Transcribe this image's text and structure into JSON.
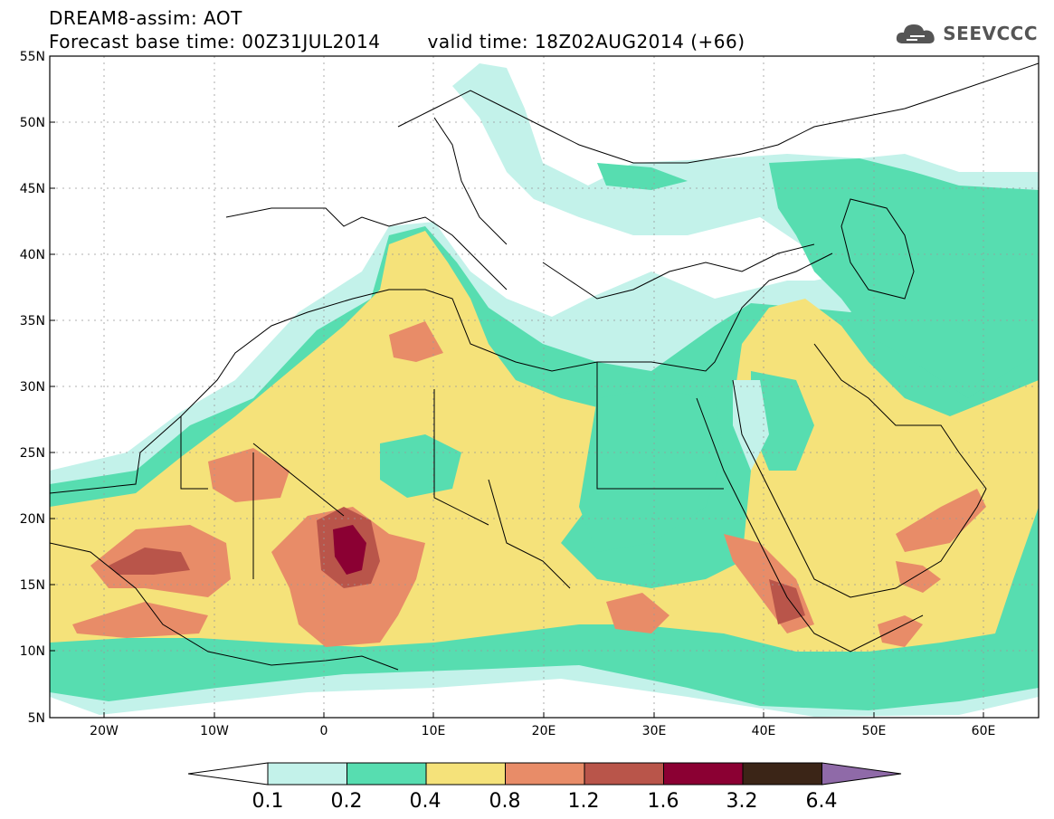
{
  "header": {
    "title_line1": "DREAM8-assim: AOT",
    "forecast_base": "Forecast base time: 00Z31JUL2014",
    "valid_time": "valid time: 18Z02AUG2014 (+66)"
  },
  "logo": {
    "text": "SEEVCCC",
    "icon": "cloud-icon"
  },
  "map": {
    "type": "contour-fill map",
    "lon_range": [
      -25,
      65
    ],
    "lat_range": [
      5,
      55
    ],
    "lat_ticks": [
      "55N",
      "50N",
      "45N",
      "40N",
      "35N",
      "30N",
      "25N",
      "20N",
      "15N",
      "10N",
      "5N"
    ],
    "lon_ticks": [
      "20W",
      "10W",
      "0",
      "10E",
      "20E",
      "30E",
      "40E",
      "50E",
      "60E"
    ],
    "gridlines": "dotted"
  },
  "colorbar": {
    "levels": [
      "0.1",
      "0.2",
      "0.4",
      "0.8",
      "1.2",
      "1.6",
      "3.2",
      "6.4"
    ],
    "colors": [
      "#ffffff",
      "#c3f2ea",
      "#57ddb0",
      "#f5e27a",
      "#e88c68",
      "#b9554a",
      "#8b0033",
      "#3b2517",
      "#8f6aa8"
    ]
  }
}
